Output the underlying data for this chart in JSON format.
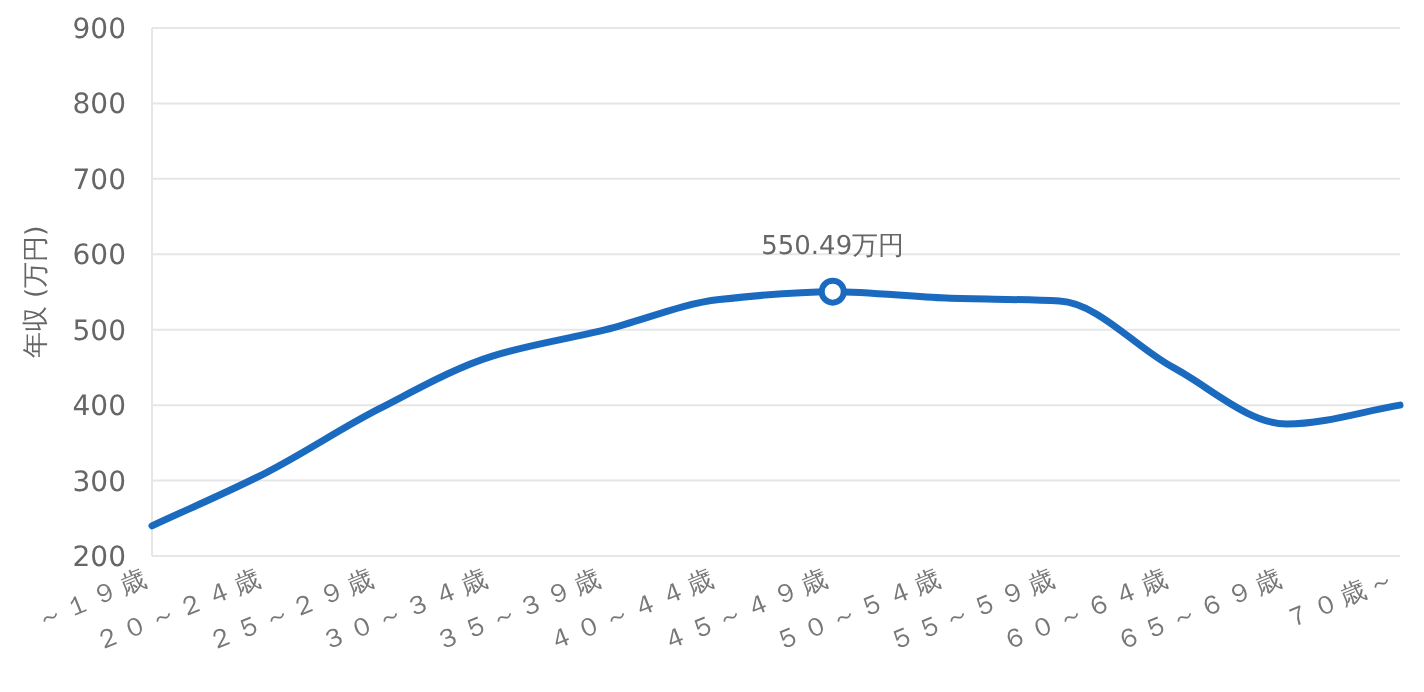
{
  "chart_data": {
    "type": "line",
    "ylabel": "年収 (万円)",
    "categories": [
      "～１９歳",
      "２０～２４歳",
      "２５～２９歳",
      "３０～３４歳",
      "３５～３９歳",
      "４０～４４歳",
      "４５～４９歳",
      "５０～５４歳",
      "５５～５９歳",
      "６０～６４歳",
      "６５～６９歳",
      "７０歳～"
    ],
    "series": [
      {
        "color": "#1a6ac0",
        "values": [
          240,
          310,
          395,
          465,
          500,
          540,
          550.49,
          542,
          538,
          450,
          375,
          400
        ]
      }
    ],
    "ylim": [
      200,
      900
    ],
    "yticks": [
      200,
      300,
      400,
      500,
      600,
      700,
      800,
      900
    ],
    "grid": "y",
    "marker": "none",
    "line_style": "solid",
    "annotations": [
      {
        "text": "550.49万円",
        "x": "４５～４９歳",
        "y": 550.49
      }
    ]
  }
}
